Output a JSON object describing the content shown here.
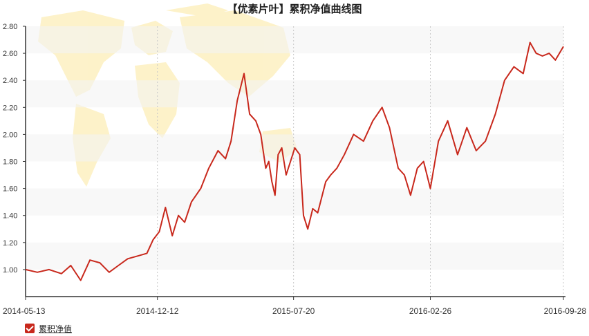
{
  "chart_data": {
    "type": "line",
    "title": "【优素片叶】累积净值曲线图",
    "xlabel": "",
    "ylabel": "",
    "ylim": [
      0.8,
      2.8
    ],
    "yticks": [
      "1.00",
      "1.20",
      "1.40",
      "1.60",
      "1.80",
      "2.00",
      "2.20",
      "2.40",
      "2.60",
      "2.80"
    ],
    "ytick_values": [
      1.0,
      1.2,
      1.4,
      1.6,
      1.8,
      2.0,
      2.2,
      2.4,
      2.6,
      2.8
    ],
    "xticks": [
      "2014-05-13",
      "2014-12-12",
      "2015-07-20",
      "2016-02-26",
      "2016-09-28"
    ],
    "xlim": [
      "2014-05-13",
      "2016-09-28"
    ],
    "grid": "horizontal bands, vertical dashed lines at x ticks",
    "legend_position": "bottom-left",
    "series": [
      {
        "name": "累积净值",
        "color": "#c8281c",
        "x": [
          "2014-05-13",
          "2014-06-01",
          "2014-06-20",
          "2014-07-10",
          "2014-07-25",
          "2014-08-10",
          "2014-08-25",
          "2014-09-10",
          "2014-09-25",
          "2014-10-10",
          "2014-10-25",
          "2014-11-10",
          "2014-11-25",
          "2014-12-05",
          "2014-12-15",
          "2014-12-25",
          "2015-01-05",
          "2015-01-15",
          "2015-01-25",
          "2015-02-05",
          "2015-02-20",
          "2015-03-05",
          "2015-03-20",
          "2015-04-01",
          "2015-04-10",
          "2015-04-20",
          "2015-05-01",
          "2015-05-10",
          "2015-05-20",
          "2015-05-28",
          "2015-06-05",
          "2015-06-10",
          "2015-06-15",
          "2015-06-20",
          "2015-06-25",
          "2015-07-01",
          "2015-07-08",
          "2015-07-15",
          "2015-07-22",
          "2015-07-30",
          "2015-08-05",
          "2015-08-12",
          "2015-08-20",
          "2015-08-28",
          "2015-09-10",
          "2015-09-18",
          "2015-09-28",
          "2015-10-10",
          "2015-10-25",
          "2015-11-10",
          "2015-11-25",
          "2015-12-10",
          "2015-12-22",
          "2016-01-05",
          "2016-01-15",
          "2016-01-25",
          "2016-02-05",
          "2016-02-15",
          "2016-02-26",
          "2016-03-10",
          "2016-03-25",
          "2016-04-10",
          "2016-04-25",
          "2016-05-10",
          "2016-05-25",
          "2016-06-10",
          "2016-06-25",
          "2016-07-10",
          "2016-07-25",
          "2016-08-05",
          "2016-08-15",
          "2016-08-25",
          "2016-09-05",
          "2016-09-15",
          "2016-09-28"
        ],
        "values": [
          1.0,
          0.98,
          1.0,
          0.97,
          1.03,
          0.92,
          1.07,
          1.05,
          0.98,
          1.03,
          1.08,
          1.1,
          1.12,
          1.22,
          1.28,
          1.46,
          1.25,
          1.4,
          1.35,
          1.5,
          1.6,
          1.75,
          1.88,
          1.82,
          1.95,
          2.25,
          2.45,
          2.15,
          2.1,
          2.0,
          1.75,
          1.8,
          1.65,
          1.55,
          1.85,
          1.9,
          1.7,
          1.8,
          1.9,
          1.85,
          1.4,
          1.3,
          1.45,
          1.42,
          1.65,
          1.7,
          1.75,
          1.85,
          2.0,
          1.95,
          2.1,
          2.2,
          2.05,
          1.75,
          1.7,
          1.55,
          1.75,
          1.8,
          1.6,
          1.95,
          2.1,
          1.85,
          2.05,
          1.88,
          1.95,
          2.15,
          2.4,
          2.5,
          2.45,
          2.68,
          2.6,
          2.58,
          2.6,
          2.55,
          2.65
        ]
      }
    ]
  },
  "legend": {
    "label": "累积净值",
    "checked": true
  }
}
